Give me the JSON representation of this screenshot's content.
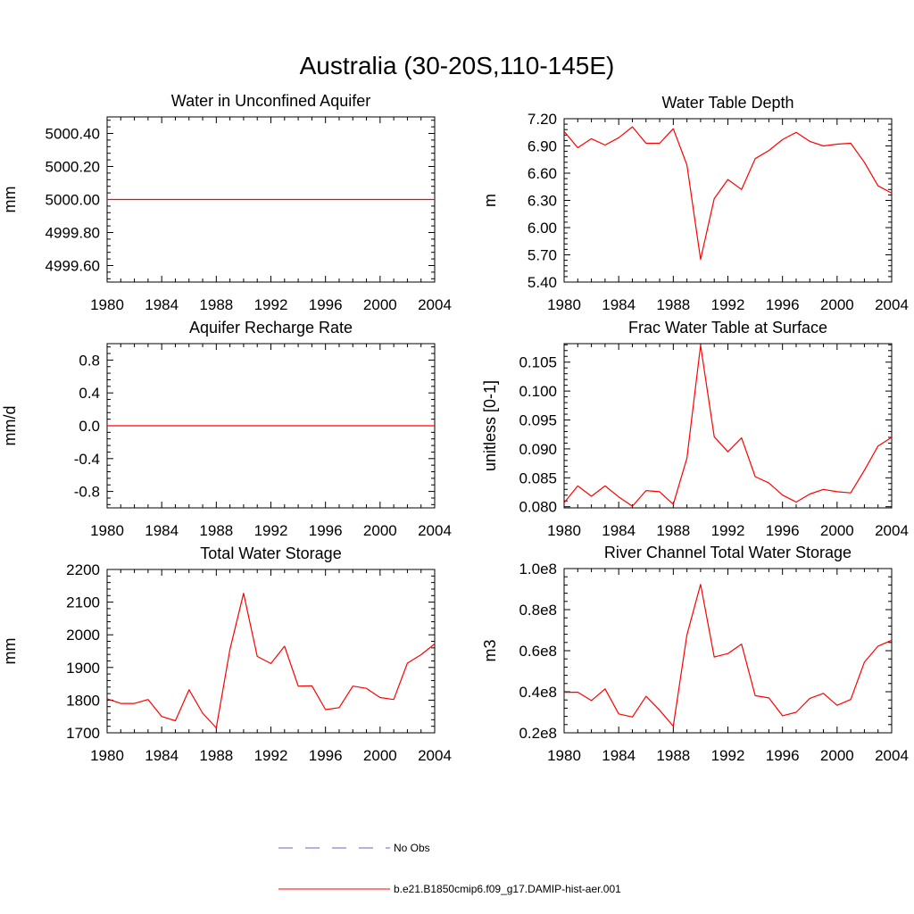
{
  "figure": {
    "title": "Australia (30-20S,110-145E)",
    "legend": [
      {
        "label": "No Obs",
        "color": "#6666cc",
        "style": "dashed"
      },
      {
        "label": "b.e21.B1850cmip6.f09_g17.DAMIP-hist-aer.001",
        "color": "#ff0000",
        "style": "solid"
      }
    ]
  },
  "chart_data": [
    {
      "id": "unconfined-aquifer",
      "type": "line",
      "title": "Water in Unconfined Aquifer",
      "xlabel": "",
      "ylabel": "mm",
      "xlim": [
        1980,
        2004
      ],
      "ylim": [
        4999.5,
        5000.5
      ],
      "xticks": [
        1980,
        1984,
        1988,
        1992,
        1996,
        2000,
        2004
      ],
      "yticks": [
        4999.6,
        4999.8,
        5000.0,
        5000.2,
        5000.4
      ],
      "ytick_labels": [
        "4999.60",
        "4999.80",
        "5000.00",
        "5000.20",
        "5000.40"
      ],
      "x": [
        1980,
        2004
      ],
      "series": [
        {
          "values": [
            5000.0,
            5000.0
          ],
          "color": "#ff0000"
        }
      ]
    },
    {
      "id": "water-table-depth",
      "type": "line",
      "title": "Water Table Depth",
      "xlabel": "",
      "ylabel": "m",
      "xlim": [
        1980,
        2004
      ],
      "ylim": [
        5.4,
        7.2
      ],
      "xticks": [
        1980,
        1984,
        1988,
        1992,
        1996,
        2000,
        2004
      ],
      "yticks": [
        5.4,
        5.7,
        6.0,
        6.3,
        6.6,
        6.9,
        7.2
      ],
      "ytick_labels": [
        "5.40",
        "5.70",
        "6.00",
        "6.30",
        "6.60",
        "6.90",
        "7.20"
      ],
      "x": [
        1980,
        1981,
        1982,
        1983,
        1984,
        1985,
        1986,
        1987,
        1988,
        1989,
        1990,
        1991,
        1992,
        1993,
        1994,
        1995,
        1996,
        1997,
        1998,
        1999,
        2000,
        2001,
        2002,
        2003,
        2004
      ],
      "series": [
        {
          "values": [
            7.06,
            6.88,
            6.98,
            6.91,
            6.99,
            7.11,
            6.93,
            6.93,
            7.09,
            6.69,
            5.65,
            6.32,
            6.53,
            6.42,
            6.76,
            6.85,
            6.97,
            7.05,
            6.95,
            6.9,
            6.92,
            6.93,
            6.72,
            6.46,
            6.38
          ],
          "color": "#ff0000"
        }
      ]
    },
    {
      "id": "aquifer-recharge-rate",
      "type": "line",
      "title": "Aquifer Recharge Rate",
      "xlabel": "",
      "ylabel": "mm/d",
      "xlim": [
        1980,
        2004
      ],
      "ylim": [
        -1.0,
        1.0
      ],
      "xticks": [
        1980,
        1984,
        1988,
        1992,
        1996,
        2000,
        2004
      ],
      "yticks": [
        -0.8,
        -0.4,
        0.0,
        0.4,
        0.8
      ],
      "ytick_labels": [
        "-0.8",
        "-0.4",
        "0.0",
        "0.4",
        "0.8"
      ],
      "x": [
        1980,
        2004
      ],
      "series": [
        {
          "values": [
            0.0,
            0.0
          ],
          "color": "#ff0000"
        }
      ]
    },
    {
      "id": "frac-water-table",
      "type": "line",
      "title": "Frac Water Table at Surface",
      "xlabel": "",
      "ylabel": "unitless [0-1]",
      "xlim": [
        1980,
        2004
      ],
      "ylim": [
        0.0798,
        0.1082
      ],
      "xticks": [
        1980,
        1984,
        1988,
        1992,
        1996,
        2000,
        2004
      ],
      "yticks": [
        0.08,
        0.085,
        0.09,
        0.095,
        0.1,
        0.105
      ],
      "ytick_labels": [
        "0.080",
        "0.085",
        "0.090",
        "0.095",
        "0.100",
        "0.105"
      ],
      "x": [
        1980,
        1981,
        1982,
        1983,
        1984,
        1985,
        1986,
        1987,
        1988,
        1989,
        1990,
        1991,
        1992,
        1993,
        1994,
        1995,
        1996,
        1997,
        1998,
        1999,
        2000,
        2001,
        2002,
        2003,
        2004
      ],
      "series": [
        {
          "values": [
            0.0807,
            0.0836,
            0.0818,
            0.0836,
            0.0817,
            0.0801,
            0.0828,
            0.0826,
            0.0804,
            0.0884,
            0.1079,
            0.0921,
            0.0895,
            0.0919,
            0.0852,
            0.0841,
            0.082,
            0.0808,
            0.0822,
            0.083,
            0.0826,
            0.0824,
            0.0863,
            0.0905,
            0.092
          ],
          "color": "#ff0000"
        }
      ]
    },
    {
      "id": "total-water-storage",
      "type": "line",
      "title": "Total Water Storage",
      "xlabel": "",
      "ylabel": "mm",
      "xlim": [
        1980,
        2004
      ],
      "ylim": [
        1700,
        2200
      ],
      "xticks": [
        1980,
        1984,
        1988,
        1992,
        1996,
        2000,
        2004
      ],
      "yticks": [
        1700,
        1800,
        1900,
        2000,
        2100,
        2200
      ],
      "ytick_labels": [
        "1700",
        "1800",
        "1900",
        "2000",
        "2100",
        "2200"
      ],
      "x": [
        1980,
        1981,
        1982,
        1983,
        1984,
        1985,
        1986,
        1987,
        1988,
        1989,
        1990,
        1991,
        1992,
        1993,
        1994,
        1995,
        1996,
        1997,
        1998,
        1999,
        2000,
        2001,
        2002,
        2003,
        2004
      ],
      "series": [
        {
          "values": [
            1804,
            1790,
            1790,
            1802,
            1750,
            1737,
            1832,
            1760,
            1715,
            1955,
            2127,
            1934,
            1912,
            1965,
            1843,
            1844,
            1771,
            1777,
            1843,
            1836,
            1808,
            1802,
            1913,
            1939,
            1972
          ],
          "color": "#ff0000"
        }
      ]
    },
    {
      "id": "river-channel-storage",
      "type": "line",
      "title": "River Channel Total Water Storage",
      "xlabel": "",
      "ylabel": "m3",
      "xlim": [
        1980,
        2004
      ],
      "ylim": [
        20000000,
        100000000
      ],
      "xticks": [
        1980,
        1984,
        1988,
        1992,
        1996,
        2000,
        2004
      ],
      "yticks": [
        20000000,
        40000000,
        60000000,
        80000000,
        100000000
      ],
      "ytick_labels": [
        "0.2e8",
        "0.4e8",
        "0.6e8",
        "0.8e8",
        "1.0e8"
      ],
      "x": [
        1980,
        1981,
        1982,
        1983,
        1984,
        1985,
        1986,
        1987,
        1988,
        1989,
        1990,
        1991,
        1992,
        1993,
        1994,
        1995,
        1996,
        1997,
        1998,
        1999,
        2000,
        2001,
        2002,
        2003,
        2004
      ],
      "series": [
        {
          "values": [
            39700000,
            39800000,
            35700000,
            41400000,
            29200000,
            27700000,
            37800000,
            31000000,
            23200000,
            67700000,
            92300000,
            56900000,
            58600000,
            63200000,
            38100000,
            37000000,
            28300000,
            30000000,
            36800000,
            39200000,
            33400000,
            36200000,
            54400000,
            62200000,
            65100000
          ],
          "color": "#ff0000"
        }
      ]
    }
  ]
}
